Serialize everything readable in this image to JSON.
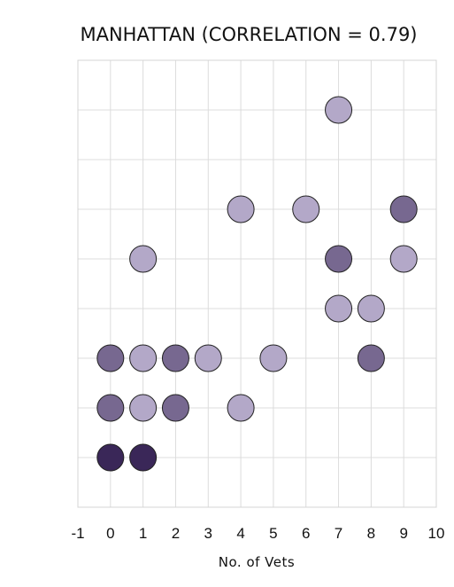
{
  "chart_data": {
    "type": "scatter",
    "title": "MANHATTAN (CORRELATION = 0.79)",
    "xlabel": "No. of Vets",
    "ylabel": "",
    "xlim": [
      -1,
      10
    ],
    "ylim": [
      0,
      9
    ],
    "x_ticks": [
      "-1",
      "0",
      "1",
      "2",
      "3",
      "4",
      "5",
      "6",
      "7",
      "8",
      "9",
      "10"
    ],
    "y_gridlines": [
      1,
      2,
      3,
      4,
      5,
      6,
      7,
      8
    ],
    "y_tick_labels_visible": false,
    "grid": true,
    "color_scale": {
      "light": "#b3a8c8",
      "dark": "#3a2758"
    },
    "points": [
      {
        "x": 0,
        "y": 1,
        "count": 3
      },
      {
        "x": 1,
        "y": 1,
        "count": 3
      },
      {
        "x": 0,
        "y": 2,
        "count": 2
      },
      {
        "x": 1,
        "y": 2,
        "count": 1
      },
      {
        "x": 2,
        "y": 2,
        "count": 2
      },
      {
        "x": 4,
        "y": 2,
        "count": 1
      },
      {
        "x": 0,
        "y": 3,
        "count": 2
      },
      {
        "x": 1,
        "y": 3,
        "count": 1
      },
      {
        "x": 2,
        "y": 3,
        "count": 2
      },
      {
        "x": 3,
        "y": 3,
        "count": 1
      },
      {
        "x": 5,
        "y": 3,
        "count": 1
      },
      {
        "x": 8,
        "y": 3,
        "count": 2
      },
      {
        "x": 7,
        "y": 4,
        "count": 1
      },
      {
        "x": 8,
        "y": 4,
        "count": 1
      },
      {
        "x": 1,
        "y": 5,
        "count": 1
      },
      {
        "x": 7,
        "y": 5,
        "count": 2
      },
      {
        "x": 9,
        "y": 5,
        "count": 1
      },
      {
        "x": 4,
        "y": 6,
        "count": 1
      },
      {
        "x": 6,
        "y": 6,
        "count": 1
      },
      {
        "x": 9,
        "y": 6,
        "count": 2
      },
      {
        "x": 7,
        "y": 8,
        "count": 1
      }
    ]
  }
}
